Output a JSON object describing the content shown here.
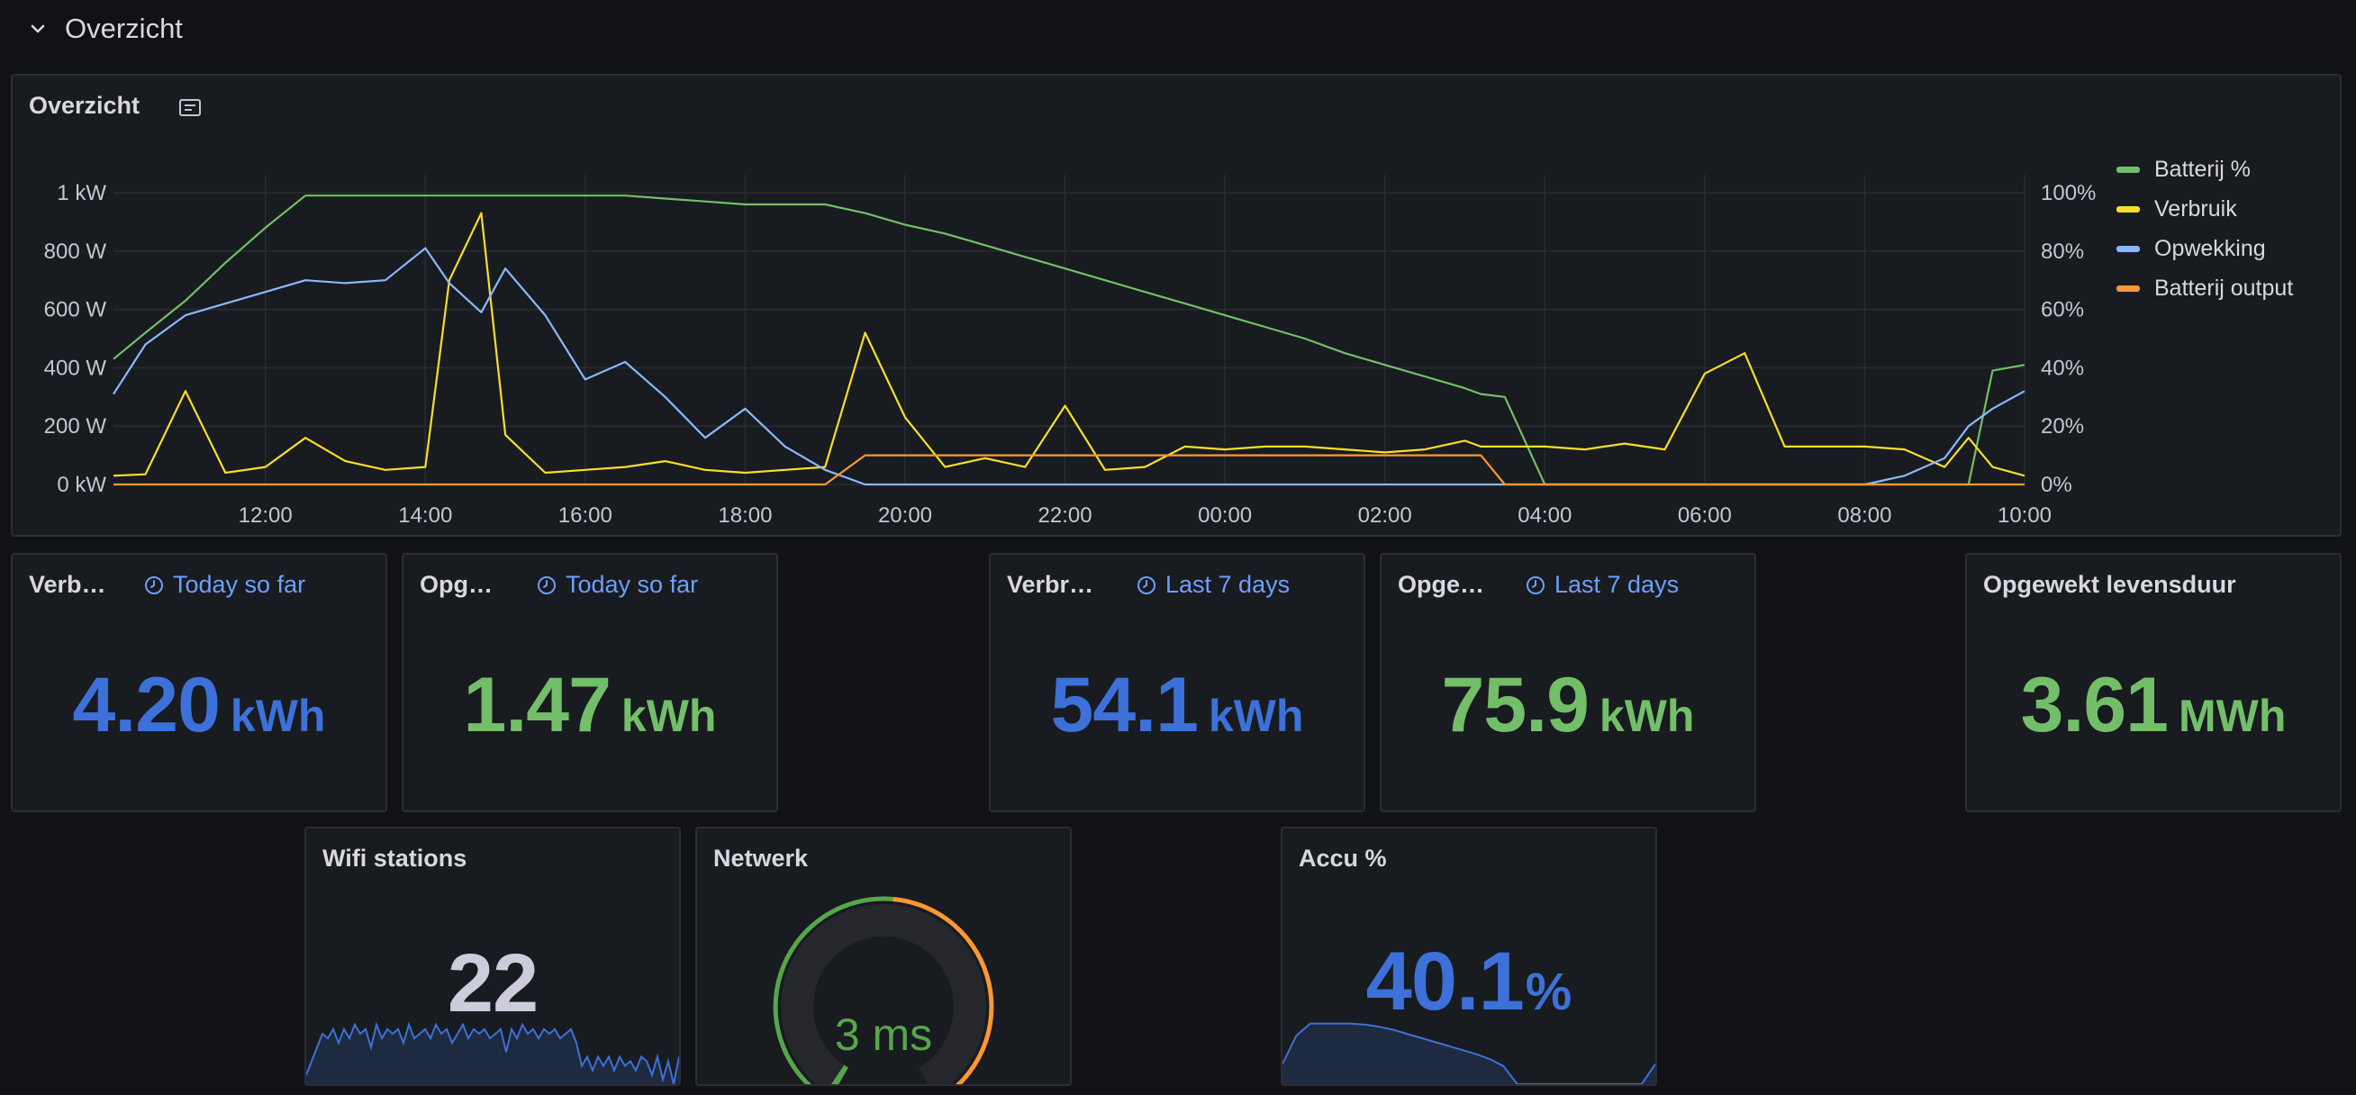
{
  "row": {
    "title": "Overzicht"
  },
  "main_panel": {
    "title": "Overzicht",
    "y_left_ticks": [
      "1 kW",
      "800 W",
      "600 W",
      "400 W",
      "200 W",
      "0 kW"
    ],
    "y_right_ticks": [
      "100%",
      "80%",
      "60%",
      "40%",
      "20%",
      "0%"
    ],
    "x_ticks": [
      "12:00",
      "14:00",
      "16:00",
      "18:00",
      "20:00",
      "22:00",
      "00:00",
      "02:00",
      "04:00",
      "06:00",
      "08:00",
      "10:00"
    ],
    "legend": [
      {
        "label": "Batterij %",
        "color": "#73bf69"
      },
      {
        "label": "Verbruik",
        "color": "#fade2a"
      },
      {
        "label": "Opwekking",
        "color": "#8ab8ff"
      },
      {
        "label": "Batterij output",
        "color": "#ff9830"
      }
    ]
  },
  "chart_data": {
    "type": "line",
    "x_hours": [
      10.1,
      10.5,
      11.0,
      11.5,
      12.0,
      12.5,
      13.0,
      13.5,
      14.0,
      14.3,
      14.7,
      15.0,
      15.5,
      16.0,
      16.5,
      17.0,
      17.5,
      18.0,
      18.5,
      19.0,
      19.5,
      20.0,
      20.5,
      21.0,
      21.5,
      22.0,
      22.5,
      23.0,
      23.5,
      24.0,
      24.5,
      25.0,
      25.5,
      26.0,
      26.5,
      27.0,
      27.2,
      27.5,
      28.0,
      28.5,
      29.0,
      29.5,
      30.0,
      30.5,
      31.0,
      31.5,
      32.0,
      32.5,
      33.0,
      33.3,
      33.6,
      34.0
    ],
    "series": [
      {
        "name": "Batterij %",
        "axis": "right",
        "color": "#73bf69",
        "values": [
          43,
          52,
          63,
          76,
          88,
          99,
          99,
          99,
          99,
          99,
          99,
          99,
          99,
          99,
          99,
          98,
          97,
          96,
          96,
          96,
          93,
          89,
          86,
          82,
          78,
          74,
          70,
          66,
          62,
          58,
          54,
          50,
          45,
          41,
          37,
          33,
          31,
          30,
          0,
          0,
          0,
          0,
          0,
          0,
          0,
          0,
          0,
          0,
          0,
          0,
          39,
          41
        ]
      },
      {
        "name": "Verbruik",
        "axis": "left",
        "color": "#fade2a",
        "values": [
          30,
          35,
          320,
          40,
          60,
          160,
          80,
          50,
          60,
          700,
          930,
          170,
          40,
          50,
          60,
          80,
          50,
          40,
          50,
          60,
          520,
          230,
          60,
          90,
          60,
          270,
          50,
          60,
          130,
          120,
          130,
          130,
          120,
          110,
          120,
          150,
          130,
          130,
          130,
          120,
          140,
          120,
          380,
          450,
          130,
          130,
          130,
          120,
          60,
          160,
          60,
          30
        ]
      },
      {
        "name": "Opwekking",
        "axis": "left",
        "color": "#8ab8ff",
        "values": [
          310,
          480,
          580,
          620,
          660,
          700,
          690,
          700,
          810,
          690,
          590,
          740,
          580,
          360,
          420,
          300,
          160,
          260,
          130,
          50,
          0,
          0,
          0,
          0,
          0,
          0,
          0,
          0,
          0,
          0,
          0,
          0,
          0,
          0,
          0,
          0,
          0,
          0,
          0,
          0,
          0,
          0,
          0,
          0,
          0,
          0,
          0,
          30,
          90,
          200,
          260,
          320
        ]
      },
      {
        "name": "Batterij output",
        "axis": "left",
        "color": "#ff9830",
        "values": [
          0,
          0,
          0,
          0,
          0,
          0,
          0,
          0,
          0,
          0,
          0,
          0,
          0,
          0,
          0,
          0,
          0,
          0,
          0,
          0,
          100,
          100,
          100,
          100,
          100,
          100,
          100,
          100,
          100,
          100,
          100,
          100,
          100,
          100,
          100,
          100,
          100,
          0,
          0,
          0,
          0,
          0,
          0,
          0,
          0,
          0,
          0,
          0,
          0,
          0,
          0,
          0
        ]
      }
    ],
    "ylim_left": [
      0,
      1000
    ],
    "ylim_right": [
      0,
      100
    ],
    "grid": true,
    "legend_position": "right"
  },
  "stats": [
    {
      "title": "Verb…",
      "range": "Today so far",
      "value": "4.20",
      "unit": "kWh",
      "color": "#3d71d9"
    },
    {
      "title": "Opg…",
      "range": "Today so far",
      "value": "1.47",
      "unit": "kWh",
      "color": "#73bf69"
    },
    {
      "title": "Verbr…",
      "range": "Last 7 days",
      "value": "54.1",
      "unit": "kWh",
      "color": "#3d71d9"
    },
    {
      "title": "Opge…",
      "range": "Last 7 days",
      "value": "75.9",
      "unit": "kWh",
      "color": "#73bf69"
    },
    {
      "title": "Opgewekt levensduur",
      "range": "",
      "value": "3.61",
      "unit": "MWh",
      "color": "#73bf69"
    }
  ],
  "wifi": {
    "title": "Wifi stations",
    "value": "22",
    "sparkline": [
      2,
      5,
      8,
      11,
      10,
      12,
      9,
      12,
      10,
      13,
      11,
      12,
      8,
      13,
      10,
      12,
      11,
      12,
      9,
      13,
      10,
      11,
      12,
      10,
      13,
      11,
      12,
      9,
      11,
      13,
      10,
      12,
      11,
      12,
      10,
      11,
      12,
      7,
      12,
      10,
      13,
      11,
      12,
      10,
      12,
      11,
      12,
      10,
      11,
      12,
      9,
      4,
      6,
      3,
      6,
      4,
      6,
      3,
      6,
      4,
      5,
      3,
      6,
      5,
      2,
      6,
      1,
      5,
      0,
      6
    ]
  },
  "network": {
    "title": "Netwerk",
    "value": "3 ms",
    "fraction": 0.55
  },
  "accu": {
    "title": "Accu %",
    "value": "40.1",
    "unit": "%",
    "sparkline": [
      20,
      48,
      60,
      60,
      60,
      60,
      59,
      57,
      54,
      50,
      46,
      42,
      38,
      34,
      30,
      25,
      18,
      0,
      0,
      0,
      0,
      0,
      0,
      0,
      0,
      0,
      0,
      20
    ]
  }
}
